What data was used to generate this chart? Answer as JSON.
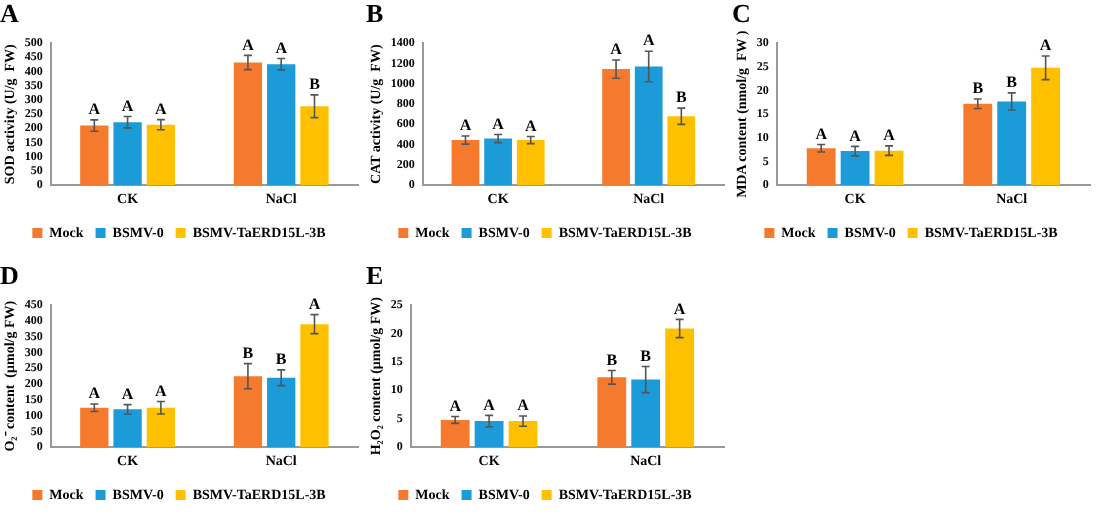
{
  "chart_data": [
    {
      "type": "bar",
      "title": "A",
      "ylabel": "SOD activity (U/g  FW)",
      "categories": [
        "CK",
        "NaCl"
      ],
      "ylim": [
        0,
        500
      ],
      "yticks": [
        0,
        50,
        100,
        150,
        200,
        250,
        300,
        350,
        400,
        450,
        500
      ],
      "legend": "bottom",
      "series": [
        {
          "name": "Mock",
          "color": "#f57a2e",
          "values": [
            210,
            432
          ],
          "errors": [
            20,
            25
          ],
          "value_labels": [
            "A",
            "A"
          ]
        },
        {
          "name": "BSMV-0",
          "color": "#1b9bd7",
          "values": [
            222,
            426
          ],
          "errors": [
            20,
            20
          ],
          "value_labels": [
            "A",
            "A"
          ]
        },
        {
          "name": "BSMV-TaERD15L-3B",
          "color": "#ffc000",
          "values": [
            213,
            278
          ],
          "errors": [
            18,
            40
          ],
          "value_labels": [
            "A",
            "B"
          ]
        }
      ]
    },
    {
      "type": "bar",
      "title": "B",
      "ylabel": "CAT activity (U/g  FW)",
      "categories": [
        "CK",
        "NaCl"
      ],
      "ylim": [
        0,
        1400
      ],
      "yticks": [
        0,
        200,
        400,
        600,
        800,
        1000,
        1200,
        1400
      ],
      "legend": "bottom",
      "series": [
        {
          "name": "Mock",
          "color": "#f57a2e",
          "values": [
            445,
            1145
          ],
          "errors": [
            40,
            90
          ],
          "value_labels": [
            "A",
            "A"
          ]
        },
        {
          "name": "BSMV-0",
          "color": "#1b9bd7",
          "values": [
            460,
            1170
          ],
          "errors": [
            40,
            150
          ],
          "value_labels": [
            "A",
            "A"
          ]
        },
        {
          "name": "BSMV-TaERD15L-3B",
          "color": "#ffc000",
          "values": [
            445,
            680
          ],
          "errors": [
            35,
            80
          ],
          "value_labels": [
            "A",
            "B"
          ]
        }
      ]
    },
    {
      "type": "bar",
      "title": "C",
      "ylabel": "MDA content (nmol/g  FW )",
      "categories": [
        "CK",
        "NaCl"
      ],
      "ylim": [
        0,
        30
      ],
      "yticks": [
        0,
        5,
        10,
        15,
        20,
        25,
        30
      ],
      "legend": "bottom",
      "series": [
        {
          "name": "Mock",
          "color": "#f57a2e",
          "values": [
            7.8,
            17.2
          ],
          "errors": [
            0.8,
            1
          ],
          "value_labels": [
            "A",
            "B"
          ]
        },
        {
          "name": "BSMV-0",
          "color": "#1b9bd7",
          "values": [
            7.2,
            17.7
          ],
          "errors": [
            1,
            1.8
          ],
          "value_labels": [
            "A",
            "B"
          ]
        },
        {
          "name": "BSMV-TaERD15L-3B",
          "color": "#ffc000",
          "values": [
            7.3,
            24.8
          ],
          "errors": [
            1,
            2.5
          ],
          "value_labels": [
            "A",
            "A"
          ]
        }
      ]
    },
    {
      "type": "bar",
      "title": "D",
      "ylabel": "O₂⁻ content  (μmol/g FW)",
      "categories": [
        "CK",
        "NaCl"
      ],
      "ylim": [
        0,
        450
      ],
      "yticks": [
        0,
        50,
        100,
        150,
        200,
        250,
        300,
        350,
        400,
        450
      ],
      "legend": "bottom",
      "series": [
        {
          "name": "Mock",
          "color": "#f57a2e",
          "values": [
            125,
            225
          ],
          "errors": [
            12,
            40
          ],
          "value_labels": [
            "A",
            "B"
          ]
        },
        {
          "name": "BSMV-0",
          "color": "#1b9bd7",
          "values": [
            120,
            220
          ],
          "errors": [
            15,
            25
          ],
          "value_labels": [
            "A",
            "B"
          ]
        },
        {
          "name": "BSMV-TaERD15L-3B",
          "color": "#ffc000",
          "values": [
            125,
            390
          ],
          "errors": [
            20,
            30
          ],
          "value_labels": [
            "A",
            "A"
          ]
        }
      ]
    },
    {
      "type": "bar",
      "title": "E",
      "ylabel": "H₂O₂ content (μmol/g FW)",
      "categories": [
        "CK",
        "NaCl"
      ],
      "ylim": [
        0,
        25
      ],
      "yticks": [
        0,
        5,
        10,
        15,
        20,
        25
      ],
      "legend": "bottom",
      "series": [
        {
          "name": "Mock",
          "color": "#f57a2e",
          "values": [
            4.8,
            12.3
          ],
          "errors": [
            0.6,
            1.2
          ],
          "value_labels": [
            "A",
            "B"
          ]
        },
        {
          "name": "BSMV-0",
          "color": "#1b9bd7",
          "values": [
            4.6,
            11.9
          ],
          "errors": [
            1,
            2.3
          ],
          "value_labels": [
            "A",
            "B"
          ]
        },
        {
          "name": "BSMV-TaERD15L-3B",
          "color": "#ffc000",
          "values": [
            4.6,
            20.9
          ],
          "errors": [
            0.9,
            1.6
          ],
          "value_labels": [
            "A",
            "A"
          ]
        }
      ]
    }
  ]
}
